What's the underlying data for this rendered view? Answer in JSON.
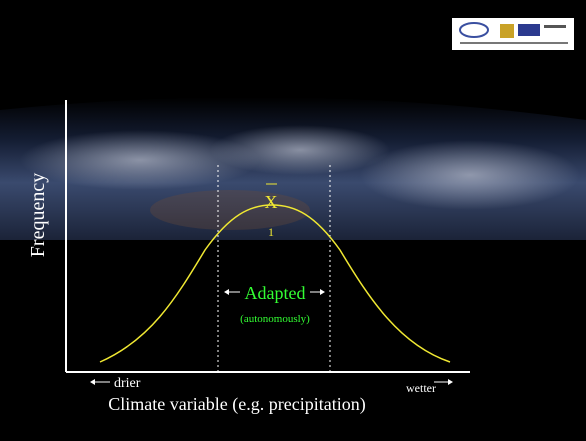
{
  "axes": {
    "y_label": "Frequency",
    "x_label": "Climate variable (e.g. precipitation)",
    "left_label": "drier",
    "right_label": "wetter"
  },
  "curve": {
    "mean_label": "X",
    "subscript": "1"
  },
  "zone": {
    "label": "Adapted",
    "sublabel": "(autonomously)"
  }
}
